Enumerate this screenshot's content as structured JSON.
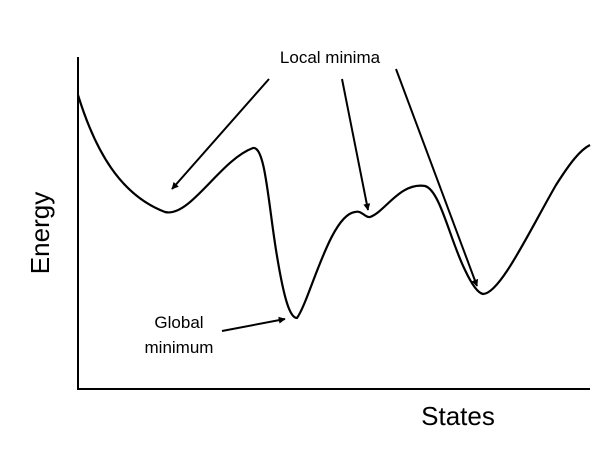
{
  "labels": {
    "y_axis": "Energy",
    "x_axis": "States",
    "local_minima": "Local minima",
    "global_minimum_line1": "Global",
    "global_minimum_line2": "minimum"
  },
  "colors": {
    "ink": "#000000",
    "background": "#ffffff"
  }
}
